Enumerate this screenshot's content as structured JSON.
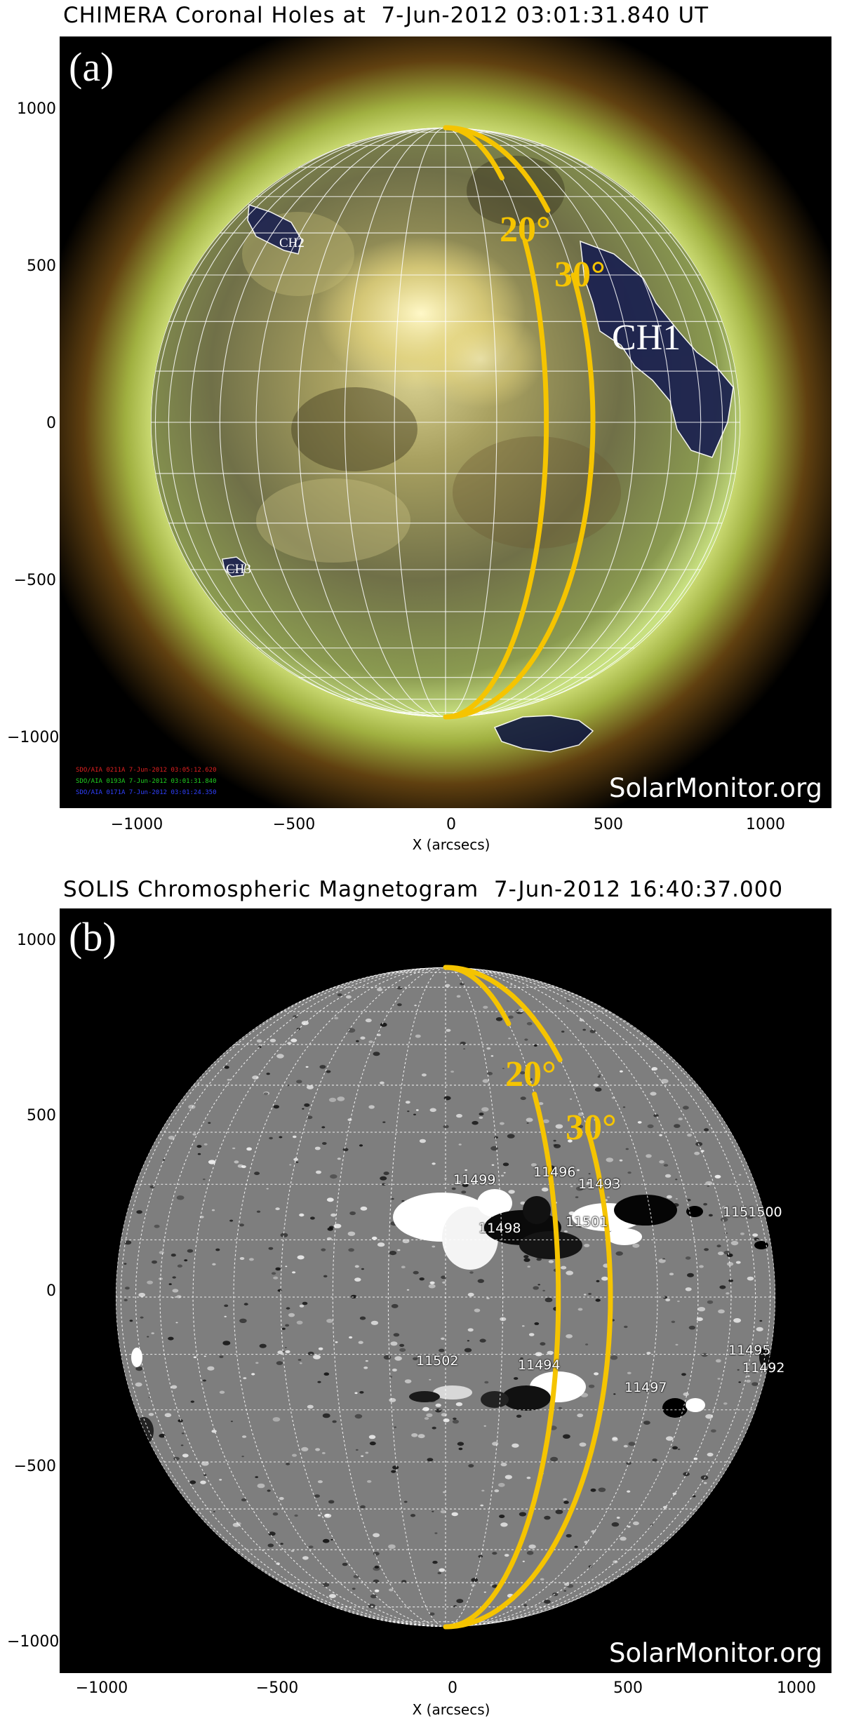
{
  "panel_a": {
    "title": "CHIMERA Coronal Holes at  7-Jun-2012 03:01:31.840 UT",
    "letter": "(a)",
    "watermark": "SolarMonitor.org",
    "xlabel": "X (arcsecs)",
    "yticks": [
      "1000",
      "500",
      "0",
      "−500",
      "−1000"
    ],
    "xticks": [
      "−1000",
      "−500",
      "0",
      "500",
      "1000"
    ],
    "lat_labels": [
      "20°",
      "30°"
    ],
    "ch_labels": [
      "CH1",
      "CH2",
      "CH3"
    ],
    "instrument_lines": [
      {
        "text": "SDO/AIA 0211A 7-Jun-2012 03:05:12.620",
        "color": "#e02020"
      },
      {
        "text": "SDO/AIA 0193A 7-Jun-2012 03:01:31.840",
        "color": "#20d020"
      },
      {
        "text": "SDO/AIA 0171A 7-Jun-2012 03:01:24.350",
        "color": "#3040ff"
      }
    ]
  },
  "panel_b": {
    "title": "SOLIS Chromospheric Magnetogram  7-Jun-2012 16:40:37.000",
    "letter": "(b)",
    "watermark": "SolarMonitor.org",
    "xlabel": "X (arcsecs)",
    "yticks": [
      "1000",
      "500",
      "0",
      "−500",
      "−1000"
    ],
    "xticks": [
      "−1000",
      "−500",
      "0",
      "500",
      "1000"
    ],
    "lat_labels": [
      "20°",
      "30°"
    ],
    "active_regions": [
      "11499",
      "11496",
      "11493",
      "11498",
      "11501",
      "1151500",
      "11502",
      "11494",
      "11497",
      "11495",
      "11492"
    ]
  },
  "colors": {
    "lat_line": "#f5c400",
    "grid": "#ffffff",
    "background": "#000000"
  }
}
